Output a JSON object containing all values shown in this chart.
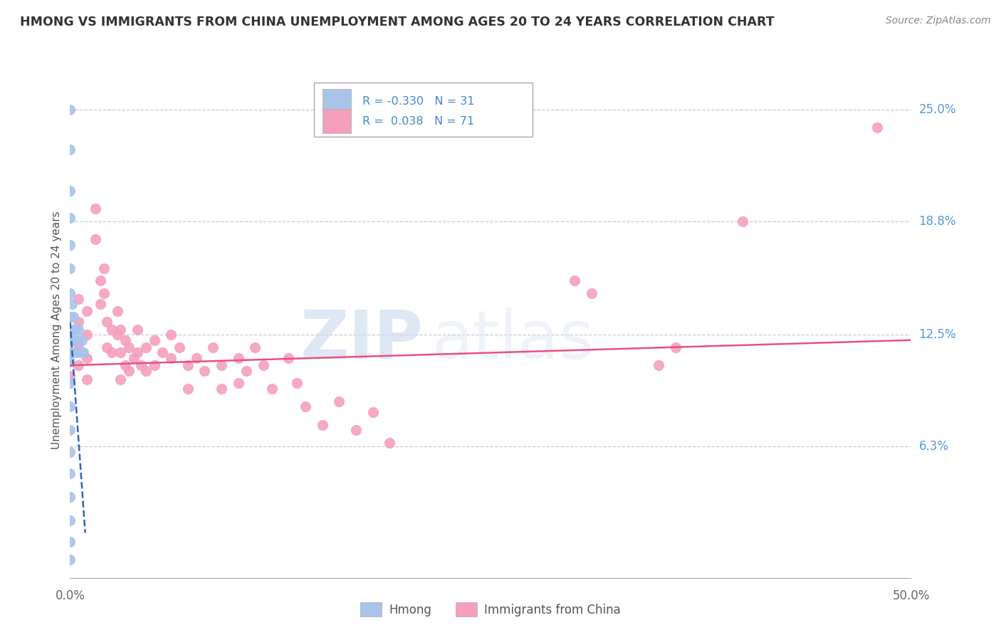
{
  "title": "HMONG VS IMMIGRANTS FROM CHINA UNEMPLOYMENT AMONG AGES 20 TO 24 YEARS CORRELATION CHART",
  "source": "Source: ZipAtlas.com",
  "ylabel": "Unemployment Among Ages 20 to 24 years",
  "xlim": [
    0.0,
    0.5
  ],
  "ylim": [
    -0.01,
    0.265
  ],
  "ytick_labels_right": [
    "25.0%",
    "18.8%",
    "12.5%",
    "6.3%"
  ],
  "ytick_values_right": [
    0.25,
    0.188,
    0.125,
    0.063
  ],
  "background_color": "#ffffff",
  "grid_color": "#c8c8d0",
  "watermark_zip": "ZIP",
  "watermark_atlas": "atlas",
  "hmong_color": "#a8c4e8",
  "china_color": "#f4a0bc",
  "hmong_line_color": "#3060c8",
  "china_line_color": "#e85080",
  "hmong_scatter": [
    [
      0.0,
      0.25
    ],
    [
      0.0,
      0.228
    ],
    [
      0.0,
      0.205
    ],
    [
      0.0,
      0.19
    ],
    [
      0.0,
      0.175
    ],
    [
      0.0,
      0.162
    ],
    [
      0.0,
      0.148
    ],
    [
      0.0,
      0.135
    ],
    [
      0.0,
      0.122
    ],
    [
      0.0,
      0.11
    ],
    [
      0.0,
      0.098
    ],
    [
      0.0,
      0.085
    ],
    [
      0.0,
      0.072
    ],
    [
      0.0,
      0.06
    ],
    [
      0.0,
      0.048
    ],
    [
      0.0,
      0.035
    ],
    [
      0.0,
      0.022
    ],
    [
      0.0,
      0.01
    ],
    [
      0.0,
      0.0
    ],
    [
      0.001,
      0.142
    ],
    [
      0.001,
      0.128
    ],
    [
      0.001,
      0.115
    ],
    [
      0.002,
      0.135
    ],
    [
      0.002,
      0.122
    ],
    [
      0.003,
      0.128
    ],
    [
      0.003,
      0.115
    ],
    [
      0.004,
      0.122
    ],
    [
      0.005,
      0.128
    ],
    [
      0.006,
      0.115
    ],
    [
      0.007,
      0.122
    ],
    [
      0.008,
      0.115
    ]
  ],
  "china_scatter": [
    [
      0.0,
      0.128
    ],
    [
      0.0,
      0.115
    ],
    [
      0.0,
      0.102
    ],
    [
      0.005,
      0.145
    ],
    [
      0.005,
      0.132
    ],
    [
      0.005,
      0.12
    ],
    [
      0.005,
      0.108
    ],
    [
      0.01,
      0.138
    ],
    [
      0.01,
      0.125
    ],
    [
      0.01,
      0.112
    ],
    [
      0.01,
      0.1
    ],
    [
      0.015,
      0.195
    ],
    [
      0.015,
      0.178
    ],
    [
      0.018,
      0.155
    ],
    [
      0.018,
      0.142
    ],
    [
      0.02,
      0.162
    ],
    [
      0.02,
      0.148
    ],
    [
      0.022,
      0.132
    ],
    [
      0.022,
      0.118
    ],
    [
      0.025,
      0.128
    ],
    [
      0.025,
      0.115
    ],
    [
      0.028,
      0.138
    ],
    [
      0.028,
      0.125
    ],
    [
      0.03,
      0.128
    ],
    [
      0.03,
      0.115
    ],
    [
      0.03,
      0.1
    ],
    [
      0.033,
      0.122
    ],
    [
      0.033,
      0.108
    ],
    [
      0.035,
      0.118
    ],
    [
      0.035,
      0.105
    ],
    [
      0.038,
      0.112
    ],
    [
      0.04,
      0.128
    ],
    [
      0.04,
      0.115
    ],
    [
      0.042,
      0.108
    ],
    [
      0.045,
      0.118
    ],
    [
      0.045,
      0.105
    ],
    [
      0.05,
      0.122
    ],
    [
      0.05,
      0.108
    ],
    [
      0.055,
      0.115
    ],
    [
      0.06,
      0.125
    ],
    [
      0.06,
      0.112
    ],
    [
      0.065,
      0.118
    ],
    [
      0.07,
      0.108
    ],
    [
      0.07,
      0.095
    ],
    [
      0.075,
      0.112
    ],
    [
      0.08,
      0.105
    ],
    [
      0.085,
      0.118
    ],
    [
      0.09,
      0.108
    ],
    [
      0.09,
      0.095
    ],
    [
      0.1,
      0.112
    ],
    [
      0.1,
      0.098
    ],
    [
      0.105,
      0.105
    ],
    [
      0.11,
      0.118
    ],
    [
      0.115,
      0.108
    ],
    [
      0.12,
      0.095
    ],
    [
      0.13,
      0.112
    ],
    [
      0.135,
      0.098
    ],
    [
      0.14,
      0.085
    ],
    [
      0.15,
      0.075
    ],
    [
      0.16,
      0.088
    ],
    [
      0.17,
      0.072
    ],
    [
      0.18,
      0.082
    ],
    [
      0.19,
      0.065
    ],
    [
      0.3,
      0.155
    ],
    [
      0.31,
      0.148
    ],
    [
      0.35,
      0.108
    ],
    [
      0.36,
      0.118
    ],
    [
      0.4,
      0.188
    ],
    [
      0.48,
      0.24
    ]
  ],
  "hmong_trend_x": [
    0.0,
    0.009
  ],
  "hmong_trend_y": [
    0.132,
    0.015
  ],
  "china_trend_x": [
    0.0,
    0.5
  ],
  "china_trend_y": [
    0.108,
    0.122
  ]
}
